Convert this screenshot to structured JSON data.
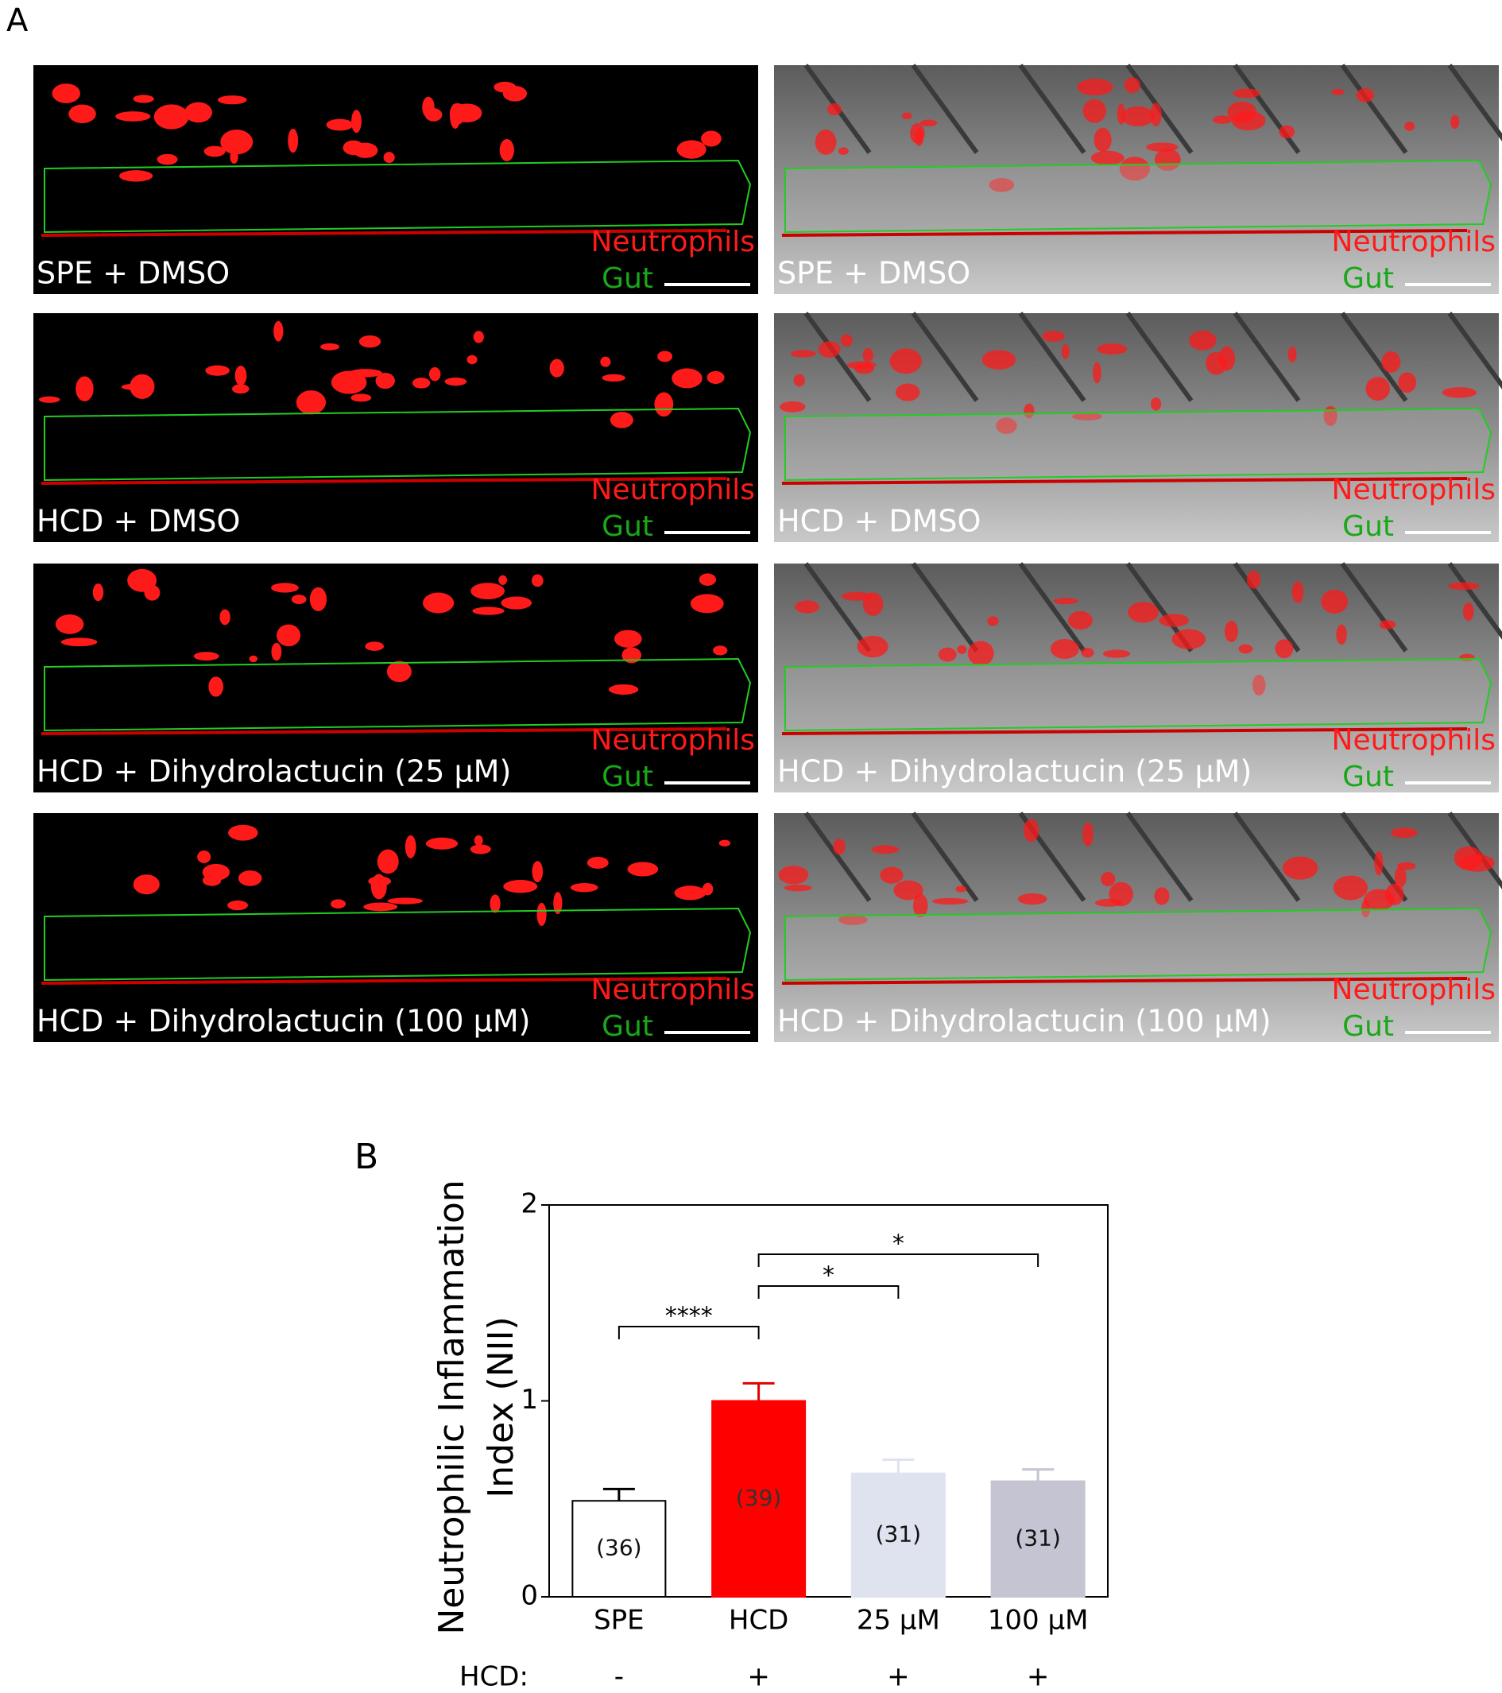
{
  "figure": {
    "panel_a_label": "A",
    "panel_b_label": "B",
    "rows": [
      "SPE + DMSO",
      "HCD + DMSO",
      "HCD + Dihydrolactucin (25 µM)",
      "HCD + Dihydrolactucin (100 µM)"
    ],
    "channel_labels": [
      "Neutrophils",
      "Gut"
    ]
  },
  "chart_data": {
    "type": "bar",
    "y_label": [
      "Neutrophilic Inflammation",
      "Index (NII)"
    ],
    "categories": [
      "SPE",
      "HCD",
      "25 µM",
      "100 µM"
    ],
    "values": [
      0.49,
      1.0,
      0.63,
      0.59
    ],
    "errors": [
      0.06,
      0.09,
      0.07,
      0.06
    ],
    "colors": [
      "#ffffff",
      "#ff0000",
      "#dfe3ef",
      "#c4c4d2"
    ],
    "n_labels": [
      "(36)",
      "(39)",
      "(31)",
      "(31)"
    ],
    "ylim": [
      0,
      2
    ],
    "yticks": [
      0,
      1,
      2
    ],
    "significance": [
      {
        "from": 0,
        "to": 1,
        "label": "****"
      },
      {
        "from": 1,
        "to": 2,
        "label": "*"
      },
      {
        "from": 1,
        "to": 3,
        "label": "*"
      }
    ],
    "hcd_row": {
      "label": "HCD:",
      "values": [
        "-",
        "+",
        "+",
        "+"
      ]
    }
  }
}
